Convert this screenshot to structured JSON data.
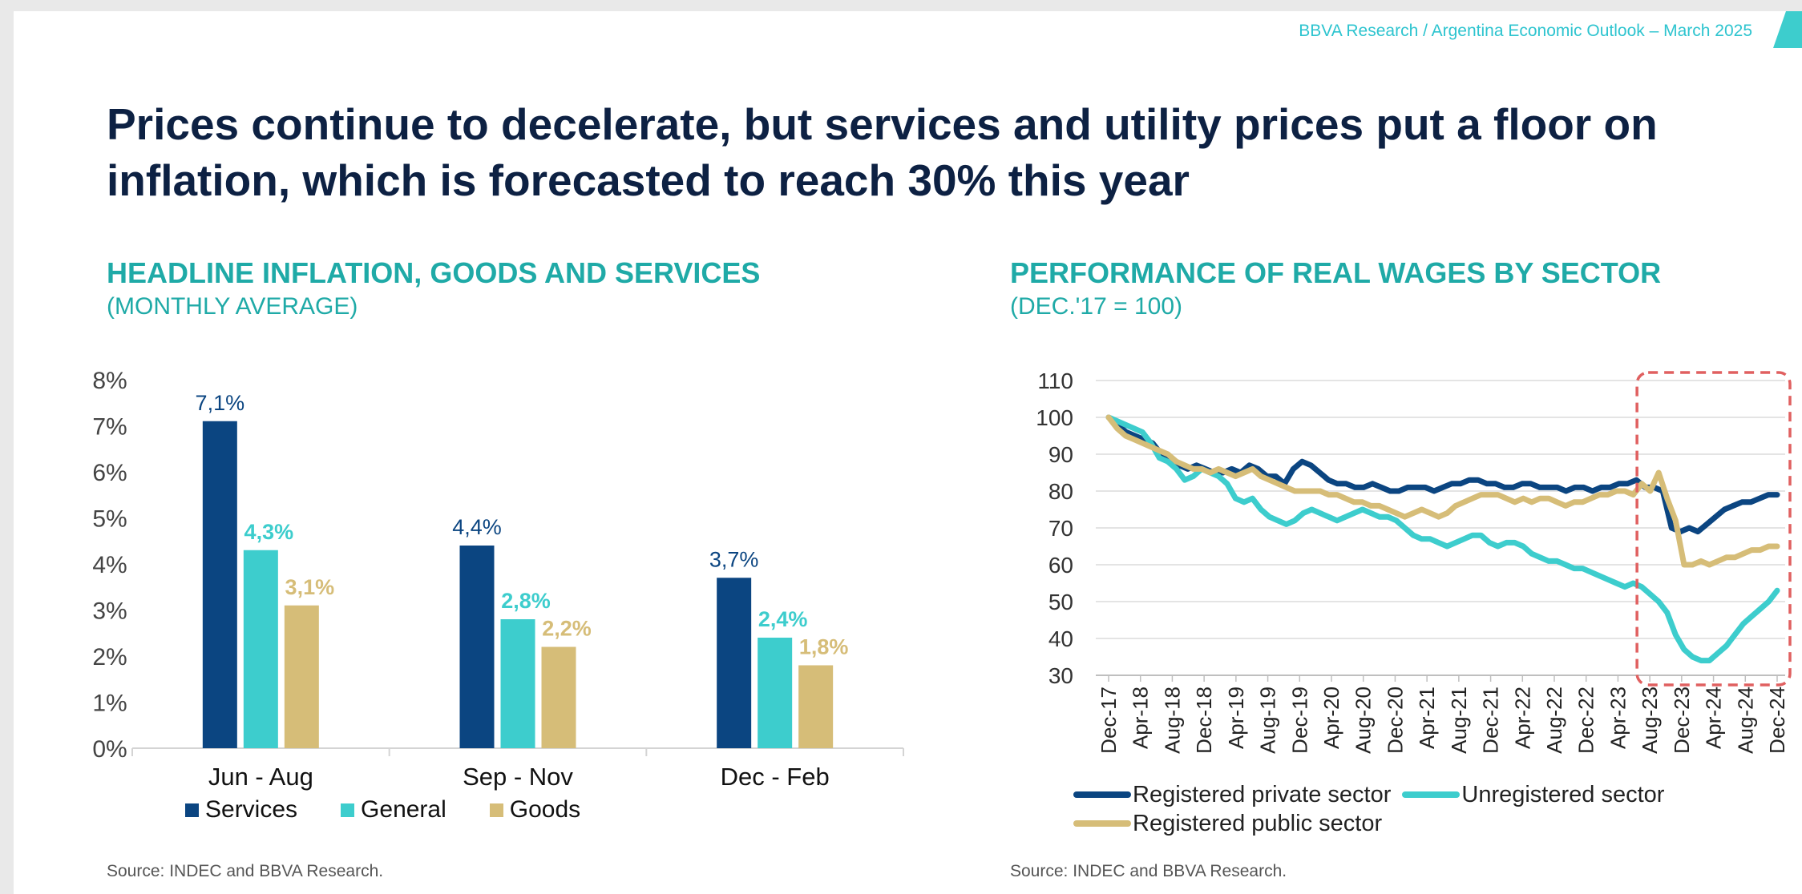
{
  "header": {
    "text": "BBVA Research / Argentina Economic Outlook – March 2025"
  },
  "title": "Prices continue to decelerate, but services and utility prices put a floor on inflation, which is forecasted to reach 30% this year",
  "colors": {
    "navy": "#0b4581",
    "turquoise": "#3dcdcd",
    "gold": "#d6bd78",
    "accent": "#1faaa7",
    "highlight": "#e06060"
  },
  "left": {
    "title": "HEADLINE INFLATION, GOODS AND SERVICES",
    "subtitle": "(MONTHLY AVERAGE)",
    "source": "Source:  INDEC and BBVA Research.",
    "legend": [
      "Services",
      "General",
      "Goods"
    ]
  },
  "right": {
    "title": "PERFORMANCE OF REAL WAGES BY SECTOR",
    "subtitle": "(DEC.'17 = 100)",
    "source": "Source:  INDEC and BBVA Research.",
    "legend": [
      "Registered private sector",
      "Unregistered sector",
      "Registered public sector"
    ]
  },
  "chart_data": [
    {
      "type": "bar",
      "title": "HEADLINE INFLATION, GOODS AND SERVICES",
      "subtitle": "(MONTHLY AVERAGE)",
      "categories": [
        "Jun - Aug",
        "Sep - Nov",
        "Dec - Feb"
      ],
      "series": [
        {
          "name": "Services",
          "values": [
            7.1,
            4.4,
            3.7
          ],
          "labels": [
            "7,1%",
            "4,4%",
            "3,7%"
          ],
          "color": "#0b4581"
        },
        {
          "name": "General",
          "values": [
            4.3,
            2.8,
            2.4
          ],
          "labels": [
            "4,3%",
            "2,8%",
            "2,4%"
          ],
          "color": "#3dcdcd"
        },
        {
          "name": "Goods",
          "values": [
            3.1,
            2.2,
            1.8
          ],
          "labels": [
            "3,1%",
            "2,2%",
            "1,8%"
          ],
          "color": "#d6bd78"
        }
      ],
      "ylim": [
        0,
        8
      ],
      "yticks": [
        "0%",
        "1%",
        "2%",
        "3%",
        "4%",
        "5%",
        "6%",
        "7%",
        "8%"
      ],
      "legend_position": "bottom"
    },
    {
      "type": "line",
      "title": "PERFORMANCE OF REAL WAGES BY SECTOR",
      "subtitle": "(DEC.'17 = 100)",
      "ylim": [
        30,
        110
      ],
      "yticks": [
        "30",
        "40",
        "50",
        "60",
        "70",
        "80",
        "90",
        "100",
        "110"
      ],
      "xticks": [
        "Dec-17",
        "Apr-18",
        "Aug-18",
        "Dec-18",
        "Apr-19",
        "Aug-19",
        "Dec-19",
        "Apr-20",
        "Aug-20",
        "Dec-20",
        "Apr-21",
        "Aug-21",
        "Dec-21",
        "Apr-22",
        "Aug-22",
        "Dec-22",
        "Apr-23",
        "Aug-23",
        "Dec-23",
        "Apr-24",
        "Aug-24",
        "Dec-24"
      ],
      "legend_position": "bottom",
      "highlight_range": [
        "Aug-23",
        "Dec-24"
      ],
      "series": [
        {
          "name": "Registered private sector",
          "color": "#0b4581",
          "values": [
            100,
            98,
            96,
            95,
            94,
            93,
            90,
            88,
            87,
            86,
            87,
            86,
            85,
            85,
            86,
            85,
            87,
            86,
            84,
            84,
            82,
            86,
            88,
            87,
            85,
            83,
            82,
            82,
            81,
            81,
            82,
            81,
            80,
            80,
            81,
            81,
            81,
            80,
            81,
            82,
            82,
            83,
            83,
            82,
            82,
            81,
            81,
            82,
            82,
            81,
            81,
            81,
            80,
            81,
            81,
            80,
            81,
            81,
            82,
            82,
            83,
            81,
            81,
            80,
            70,
            69,
            70,
            69,
            71,
            73,
            75,
            76,
            77,
            77,
            78,
            79,
            79
          ]
        },
        {
          "name": "Unregistered sector",
          "color": "#3dcdcd",
          "values": [
            100,
            99,
            98,
            97,
            96,
            93,
            89,
            88,
            86,
            83,
            84,
            86,
            85,
            84,
            82,
            78,
            77,
            78,
            75,
            73,
            72,
            71,
            72,
            74,
            75,
            74,
            73,
            72,
            73,
            74,
            75,
            74,
            73,
            73,
            72,
            70,
            68,
            67,
            67,
            66,
            65,
            66,
            67,
            68,
            68,
            66,
            65,
            66,
            66,
            65,
            63,
            62,
            61,
            61,
            60,
            59,
            59,
            58,
            57,
            56,
            55,
            54,
            55,
            54,
            52,
            50,
            47,
            41,
            37,
            35,
            34,
            34,
            36,
            38,
            41,
            44,
            46,
            48,
            50,
            53
          ]
        },
        {
          "name": "Registered public sector",
          "color": "#d6bd78",
          "values": [
            100,
            97,
            95,
            94,
            93,
            92,
            91,
            90,
            88,
            87,
            86,
            86,
            85,
            86,
            85,
            84,
            85,
            86,
            84,
            83,
            82,
            81,
            80,
            80,
            80,
            80,
            79,
            79,
            78,
            77,
            77,
            76,
            76,
            75,
            74,
            73,
            74,
            75,
            74,
            73,
            74,
            76,
            77,
            78,
            79,
            79,
            79,
            78,
            77,
            78,
            77,
            78,
            78,
            77,
            76,
            77,
            77,
            78,
            79,
            79,
            80,
            80,
            79,
            82,
            80,
            85,
            78,
            72,
            60,
            60,
            61,
            60,
            61,
            62,
            62,
            63,
            64,
            64,
            65,
            65
          ]
        }
      ]
    }
  ]
}
